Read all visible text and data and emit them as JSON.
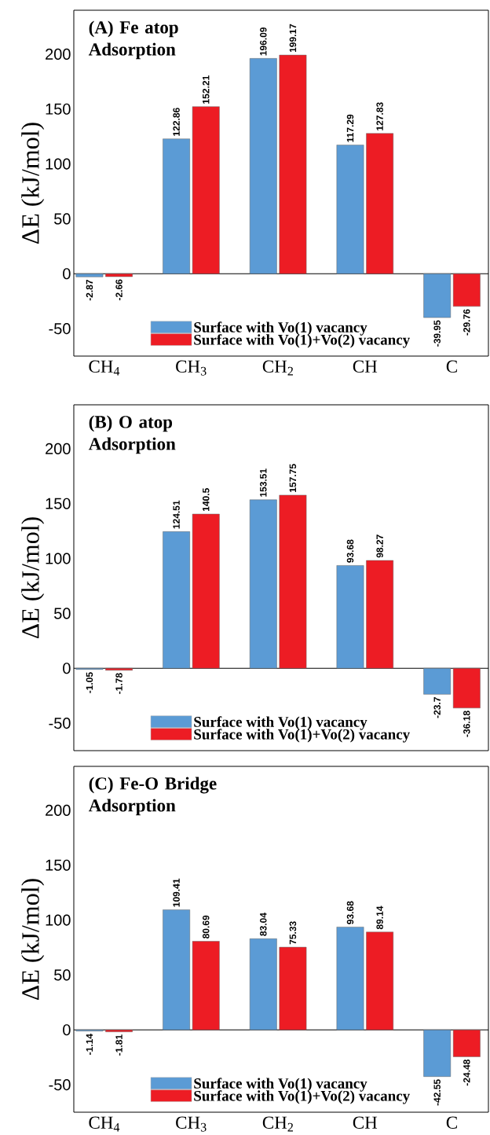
{
  "chart_data": [
    {
      "type": "bar",
      "title": "(A) Fe atop Adsorption",
      "ylabel": "ΔE (kJ/mol)",
      "categories": [
        "CH$_{4}$",
        "CH$_{3}$",
        "CH$_{2}$",
        "CH",
        "C"
      ],
      "series": [
        {
          "name": "Surface with Vo(1) vacancy",
          "color": "#5b9bd5",
          "values": [
            -2.87,
            122.86,
            196.09,
            117.29,
            -39.95
          ]
        },
        {
          "name": "Surface with Vo(1)+Vo(2) vacancy",
          "color": "#ed1c24",
          "values": [
            -2.66,
            152.21,
            199.17,
            127.83,
            -29.76
          ]
        }
      ],
      "ylim": [
        -75,
        240
      ],
      "yticks": [
        -50,
        0,
        50,
        100,
        150,
        200
      ],
      "data_labels": true,
      "legend": "bottom",
      "ref_lines": [
        {
          "axis": "y",
          "value": 0
        }
      ]
    },
    {
      "type": "bar",
      "title": "(B) O atop Adsorption",
      "ylabel": "ΔE (kJ/mol)",
      "categories": [
        null,
        null,
        null,
        null,
        null
      ],
      "series": [
        {
          "name": "Surface with Vo(1) vacancy",
          "color": "#5b9bd5",
          "values": [
            -1.05,
            124.51,
            153.51,
            93.68,
            -23.7
          ]
        },
        {
          "name": "Surface with Vo(1)+Vo(2) vacancy",
          "color": "#ed1c24",
          "values": [
            -1.78,
            140.5,
            157.75,
            98.27,
            -36.18
          ]
        }
      ],
      "ylim": [
        -75,
        240
      ],
      "yticks": [
        -50,
        0,
        50,
        100,
        150,
        200
      ],
      "data_labels": true,
      "legend": "bottom",
      "tick_labels": "y",
      "ref_lines": [
        {
          "axis": "y",
          "value": 0
        }
      ]
    },
    {
      "type": "bar",
      "title": "(C) Fe-O Bridge Adsorption",
      "ylabel": "ΔE (kJ/mol)",
      "categories": [
        "CH$_{4}$",
        "CH$_{3}$",
        "CH$_{2}$",
        "CH",
        "C"
      ],
      "series": [
        {
          "name": "Surface with Vo(1) vacancy",
          "color": "#5b9bd5",
          "values": [
            -1.14,
            109.41,
            83.04,
            93.68,
            -42.55
          ]
        },
        {
          "name": "Surface with Vo(1)+Vo(2) vacancy",
          "color": "#ed1c24",
          "values": [
            -1.81,
            80.69,
            75.33,
            89.14,
            -24.48
          ]
        }
      ],
      "ylim": [
        -75,
        240
      ],
      "yticks": [
        -50,
        0,
        50,
        100,
        150,
        200
      ],
      "data_labels": true,
      "legend": "bottom",
      "ref_lines": [
        {
          "axis": "y",
          "value": 0
        }
      ]
    }
  ]
}
